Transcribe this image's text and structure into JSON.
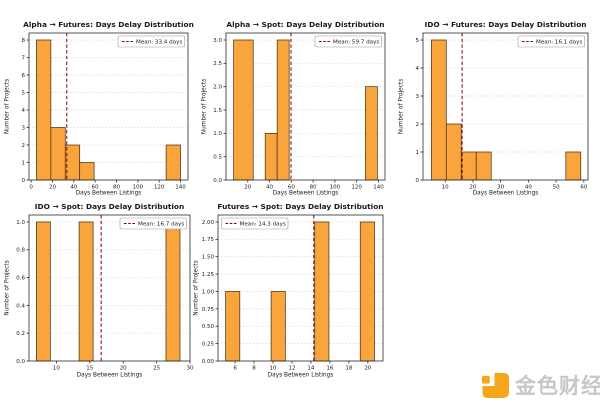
{
  "figure": {
    "background": "#ffffff",
    "bar_fill": "#f9a43c",
    "bar_edge": "#3d2f12",
    "mean_line_color": "#8b0000",
    "grid_color": "#c9c9c9",
    "spine_color": "#2b2b2b",
    "text_color": "#1a1a1a",
    "legend_border": "#9a9a9a",
    "legend_bg": "#ffffff"
  },
  "chart_data": [
    {
      "type": "bar",
      "title": "Alpha → Futures: Days Delay Distribution",
      "xlabel": "Days Between Listings",
      "ylabel": "Number of Projects",
      "legend": "Mean: 33.4 days",
      "legend_pos": "right",
      "mean": 33.4,
      "xlim": [
        -2,
        147
      ],
      "ylim": [
        0,
        8.4
      ],
      "xticks": [
        0,
        20,
        40,
        60,
        80,
        100,
        120,
        140
      ],
      "yticks": [
        "0",
        "1",
        "2",
        "3",
        "4",
        "5",
        "6",
        "7",
        "8"
      ],
      "grid": "horizontal-dotted",
      "bars": [
        {
          "from": 5,
          "to": 18.5,
          "count": 8
        },
        {
          "from": 18.5,
          "to": 32,
          "count": 3
        },
        {
          "from": 32,
          "to": 45.5,
          "count": 2
        },
        {
          "from": 45.5,
          "to": 59,
          "count": 1
        },
        {
          "from": 126.5,
          "to": 140,
          "count": 2
        }
      ]
    },
    {
      "type": "bar",
      "title": "Alpha → Spot: Days Delay Distribution",
      "xlabel": "Days Between Listings",
      "ylabel": "Number of Projects",
      "legend": "Mean: 59.7 days",
      "legend_pos": "right",
      "mean": 59.7,
      "xlim": [
        0,
        146
      ],
      "ylim": [
        0,
        3.15
      ],
      "xticks": [
        20,
        40,
        60,
        80,
        100,
        120,
        140
      ],
      "yticks": [
        "0.0",
        "0.5",
        "1.0",
        "1.5",
        "2.0",
        "2.5",
        "3.0"
      ],
      "grid": "horizontal-dotted",
      "bars": [
        {
          "from": 7,
          "to": 25,
          "count": 3
        },
        {
          "from": 36,
          "to": 47,
          "count": 1
        },
        {
          "from": 47,
          "to": 58,
          "count": 3
        },
        {
          "from": 128,
          "to": 139,
          "count": 2
        }
      ]
    },
    {
      "type": "bar",
      "title": "IDO → Futures: Days Delay Distribution",
      "xlabel": "Days Between Listings",
      "ylabel": "Number of Projects",
      "legend": "Mean: 16.1 days",
      "legend_pos": "right",
      "mean": 16.1,
      "xlim": [
        2,
        61.5
      ],
      "ylim": [
        0,
        5.25
      ],
      "xticks": [
        10,
        20,
        30,
        40,
        50,
        60
      ],
      "yticks": [
        "0",
        "1",
        "2",
        "3",
        "4",
        "5"
      ],
      "grid": "horizontal-dotted",
      "bars": [
        {
          "from": 5,
          "to": 10.4,
          "count": 5
        },
        {
          "from": 10.4,
          "to": 15.8,
          "count": 2
        },
        {
          "from": 15.8,
          "to": 21.2,
          "count": 1
        },
        {
          "from": 21.2,
          "to": 26.6,
          "count": 1
        },
        {
          "from": 53.5,
          "to": 58.9,
          "count": 1
        }
      ]
    },
    {
      "type": "bar",
      "title": "IDO → Spot: Days Delay Distribution",
      "xlabel": "Days Between Listings",
      "ylabel": "Number of Projects",
      "legend": "Mean: 16.7 days",
      "legend_pos": "right",
      "mean": 16.7,
      "xlim": [
        5.9,
        30
      ],
      "ylim": [
        0,
        1.05
      ],
      "xticks": [
        10,
        15,
        20,
        25,
        30
      ],
      "yticks": [
        "0.0",
        "0.2",
        "0.4",
        "0.6",
        "0.8",
        "1.0"
      ],
      "grid": "horizontal-dotted",
      "bars": [
        {
          "from": 7,
          "to": 9.1,
          "count": 1
        },
        {
          "from": 13.4,
          "to": 15.5,
          "count": 1
        },
        {
          "from": 26.4,
          "to": 28.5,
          "count": 1
        }
      ]
    },
    {
      "type": "bar",
      "title": "Futures → Spot: Days Delay Distribution",
      "xlabel": "Days Between Listings",
      "ylabel": "Number of Projects",
      "legend": "Mean: 14.3 days",
      "legend_pos": "left",
      "mean": 14.3,
      "xlim": [
        4.2,
        21.6
      ],
      "ylim": [
        0,
        2.1
      ],
      "xticks": [
        6,
        8,
        10,
        12,
        14,
        16,
        18,
        20
      ],
      "yticks": [
        "0.00",
        "0.25",
        "0.50",
        "0.75",
        "1.00",
        "1.25",
        "1.50",
        "1.75",
        "2.00"
      ],
      "grid": "horizontal-dotted",
      "bars": [
        {
          "from": 5,
          "to": 6.5,
          "count": 1
        },
        {
          "from": 9.8,
          "to": 11.3,
          "count": 1
        },
        {
          "from": 14.4,
          "to": 15.9,
          "count": 2
        },
        {
          "from": 19.2,
          "to": 20.7,
          "count": 2
        }
      ]
    }
  ],
  "watermark": {
    "text": "金色财经",
    "logo": "jinse-finance-logo",
    "logo_color": "#f7a51b",
    "text_color": "#c7c7c7"
  }
}
